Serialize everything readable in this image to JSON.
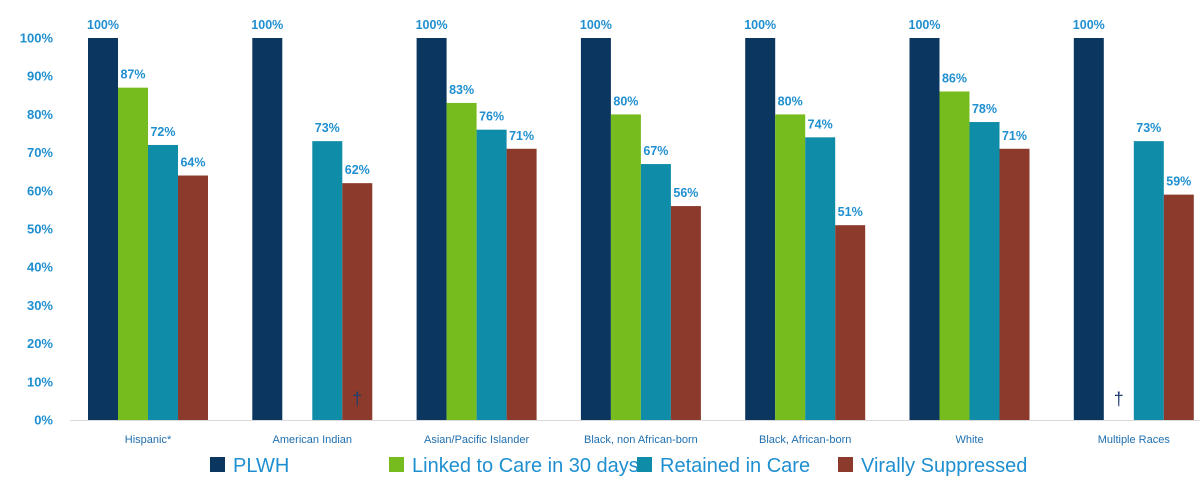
{
  "chart_data": {
    "type": "bar",
    "title": "",
    "xlabel": "",
    "ylabel": "",
    "ylim": [
      0,
      100
    ],
    "yticks": [
      "0%",
      "10%",
      "20%",
      "30%",
      "40%",
      "50%",
      "60%",
      "70%",
      "80%",
      "90%",
      "100%"
    ],
    "grid": false,
    "legend_position": "bottom",
    "categories": [
      "Hispanic*",
      "American Indian",
      "Asian/Pacific Islander",
      "Black, non African-born",
      "Black, African-born",
      "White",
      "Multiple Races"
    ],
    "series": [
      {
        "name": "PLWH",
        "color": "#0B3660",
        "values": [
          100,
          100,
          100,
          100,
          100,
          100,
          100
        ],
        "labels": [
          "100%",
          "100%",
          "100%",
          "100%",
          "100%",
          "100%",
          "100%"
        ]
      },
      {
        "name": "Linked to Care in 30 days",
        "color": "#77BC1F",
        "values": [
          87,
          null,
          83,
          80,
          80,
          86,
          null
        ],
        "labels": [
          "87%",
          "",
          "83%",
          "80%",
          "80%",
          "86%",
          ""
        ]
      },
      {
        "name": "Retained in Care",
        "color": "#0E8CA8",
        "values": [
          72,
          73,
          76,
          67,
          74,
          78,
          73
        ],
        "labels": [
          "72%",
          "73%",
          "76%",
          "67%",
          "74%",
          "78%",
          "73%"
        ]
      },
      {
        "name": "Virally Suppressed",
        "color": "#8B3A2B",
        "values": [
          64,
          62,
          71,
          56,
          51,
          71,
          59
        ],
        "labels": [
          "64%",
          "62%",
          "71%",
          "56%",
          "51%",
          "71%",
          "59%"
        ]
      }
    ],
    "annotations": [
      {
        "category": "American Indian",
        "series": "Virally Suppressed",
        "text": "†"
      },
      {
        "category": "Multiple Races",
        "series": "Linked to Care in 30 days",
        "text": "†"
      }
    ]
  }
}
